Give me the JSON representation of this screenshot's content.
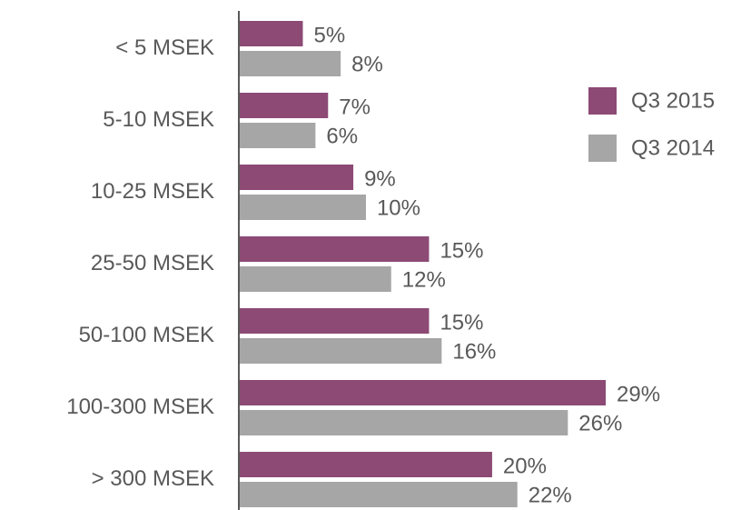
{
  "chart_data": {
    "type": "bar",
    "orientation": "horizontal",
    "categories": [
      "< 5 MSEK",
      "5-10 MSEK",
      "10-25 MSEK",
      "25-50 MSEK",
      "50-100 MSEK",
      "100-300 MSEK",
      "> 300 MSEK"
    ],
    "series": [
      {
        "name": "Q3 2015",
        "color": "#8c4a75",
        "values": [
          5,
          7,
          9,
          15,
          15,
          29,
          20
        ],
        "value_labels": [
          "5%",
          "7%",
          "9%",
          "15%",
          "15%",
          "29%",
          "20%"
        ]
      },
      {
        "name": "Q3 2014",
        "color": "#a6a6a6",
        "values": [
          8,
          6,
          10,
          12,
          16,
          26,
          22
        ],
        "value_labels": [
          "8%",
          "6%",
          "10%",
          "12%",
          "16%",
          "26%",
          "22%"
        ]
      }
    ],
    "legend": "right"
  }
}
